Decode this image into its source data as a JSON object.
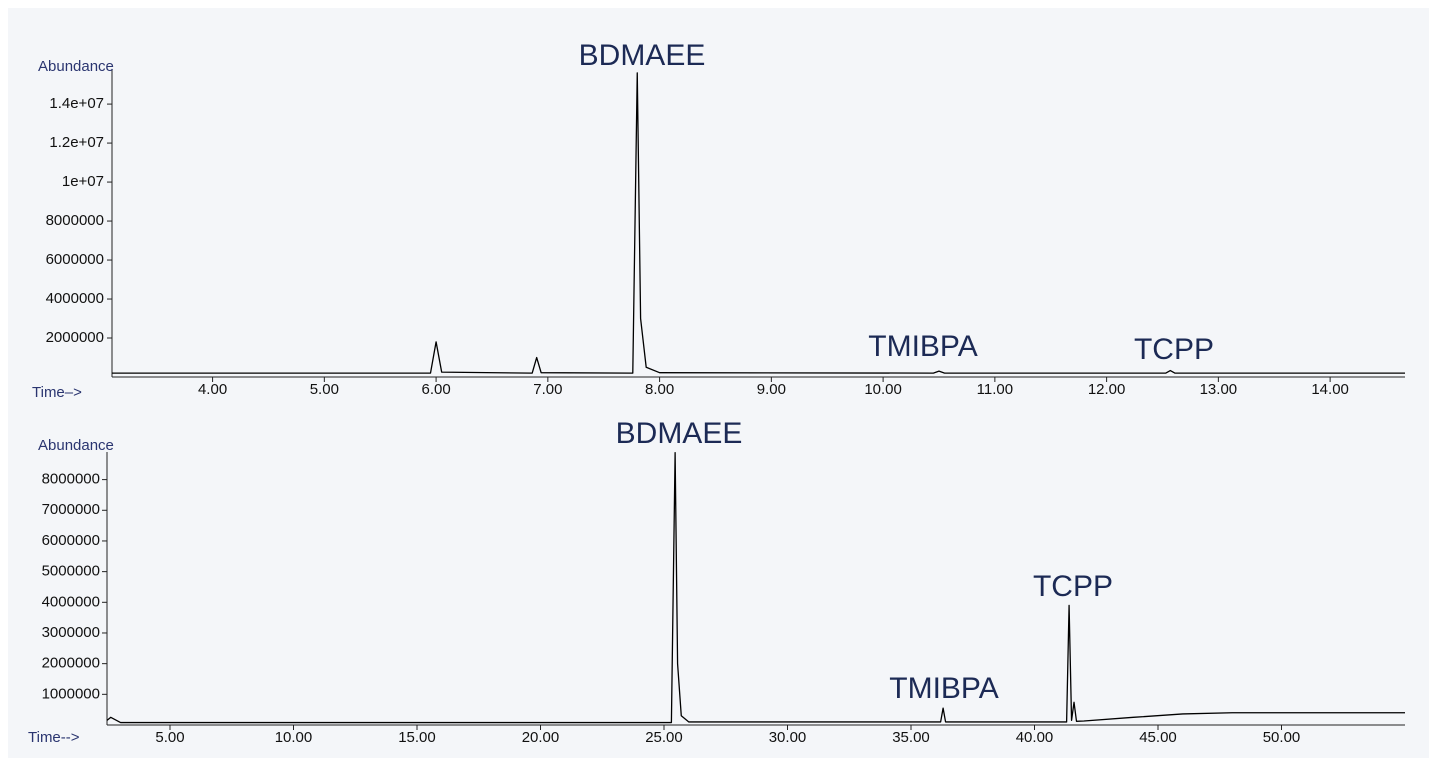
{
  "chart_data": [
    {
      "type": "line",
      "y_label": "Abundance",
      "x_label": "Time–>",
      "annotations": [
        "BDMAEE",
        "TMIBPA",
        "TCPP"
      ],
      "xlim": [
        3.1,
        14.67
      ],
      "ylim": [
        0,
        15800000
      ],
      "xticks": [
        {
          "value": 4,
          "label": "4.00"
        },
        {
          "value": 5,
          "label": "5.00"
        },
        {
          "value": 6,
          "label": "6.00"
        },
        {
          "value": 7,
          "label": "7.00"
        },
        {
          "value": 8,
          "label": "8.00"
        },
        {
          "value": 9,
          "label": "9.00"
        },
        {
          "value": 10,
          "label": "10.00"
        },
        {
          "value": 11,
          "label": "11.00"
        },
        {
          "value": 12,
          "label": "12.00"
        },
        {
          "value": 13,
          "label": "13.00"
        },
        {
          "value": 14,
          "label": "14.00"
        }
      ],
      "yticks": [
        2000000,
        4000000,
        6000000,
        8000000,
        {
          "value": 10000000,
          "label": "1e+07"
        },
        {
          "value": 12000000,
          "label": "1.2e+07"
        },
        {
          "value": 14000000,
          "label": "1.4e+07"
        }
      ],
      "color": "#000000",
      "x": [
        3.1,
        5.95,
        6.0,
        6.05,
        6.86,
        6.9,
        6.94,
        7.76,
        7.8,
        7.83,
        7.88,
        8.0,
        10.45,
        10.5,
        10.55,
        12.53,
        12.57,
        12.61,
        14.67
      ],
      "values": [
        200000,
        200000,
        1800000,
        250000,
        200000,
        1000000,
        220000,
        200000,
        15600000,
        3000000,
        500000,
        220000,
        200000,
        300000,
        200000,
        200000,
        330000,
        200000,
        200000
      ]
    },
    {
      "type": "line",
      "y_label": "Abundance",
      "x_label": "Time-->",
      "annotations": [
        "BDMAEE",
        "TMIBPA",
        "TCPP"
      ],
      "xlim": [
        2.45,
        55
      ],
      "ylim": [
        0,
        8900000
      ],
      "xticks": [
        {
          "value": 5,
          "label": "5.00"
        },
        {
          "value": 10,
          "label": "10.00"
        },
        {
          "value": 15,
          "label": "15.00"
        },
        {
          "value": 20,
          "label": "20.00"
        },
        {
          "value": 25,
          "label": "25.00"
        },
        {
          "value": 30,
          "label": "30.00"
        },
        {
          "value": 35,
          "label": "35.00"
        },
        {
          "value": 40,
          "label": "40.00"
        },
        {
          "value": 45,
          "label": "45.00"
        },
        {
          "value": 50,
          "label": "50.00"
        }
      ],
      "yticks": [
        1000000,
        2000000,
        3000000,
        4000000,
        5000000,
        6000000,
        7000000,
        8000000
      ],
      "color": "#000000",
      "x": [
        2.45,
        2.6,
        3.0,
        25.3,
        25.45,
        25.55,
        25.7,
        26.0,
        36.2,
        36.3,
        36.4,
        41.3,
        41.4,
        41.5,
        41.6,
        41.7,
        42.0,
        44,
        46,
        48,
        55
      ],
      "values": [
        150000,
        250000,
        80000,
        80000,
        8880000,
        2000000,
        300000,
        100000,
        100000,
        550000,
        100000,
        100000,
        3900000,
        150000,
        740000,
        120000,
        130000,
        250000,
        360000,
        400000,
        400000
      ]
    }
  ]
}
